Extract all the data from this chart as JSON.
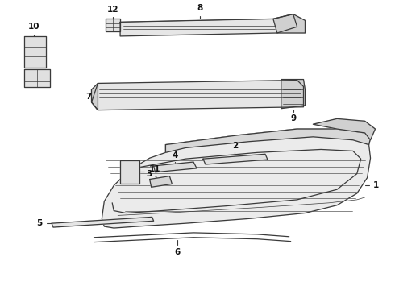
{
  "background_color": "#ffffff",
  "line_color": "#3a3a3a",
  "label_color": "#111111",
  "lw_main": 0.9,
  "lw_thin": 0.5,
  "label_fontsize": 7.5
}
